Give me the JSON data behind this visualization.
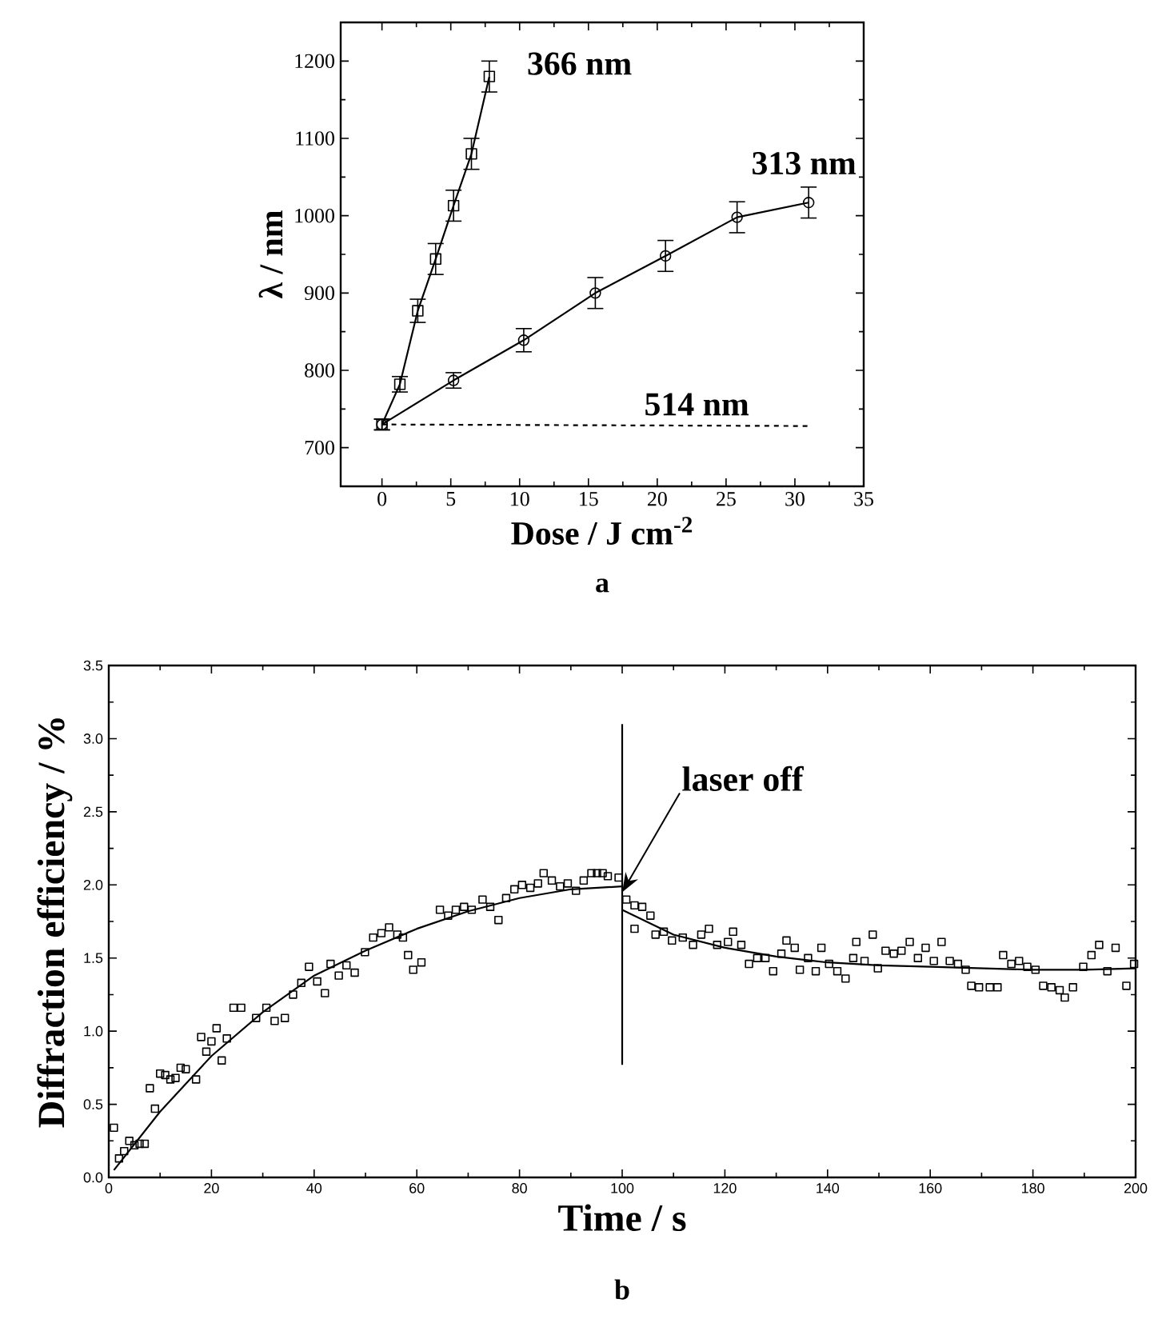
{
  "chart_data": [
    {
      "type": "line",
      "xlabel": "Dose / J cm$^{-2}$",
      "ylabel": "λ / nm",
      "xlim": [
        -3,
        35
      ],
      "ylim": [
        650,
        1250
      ],
      "xticks": [
        0,
        5,
        10,
        15,
        20,
        25,
        30,
        35
      ],
      "yticks": [
        700,
        800,
        900,
        1000,
        1100,
        1200
      ],
      "annotations": [
        "a"
      ],
      "legend": "top right",
      "series": [
        {
          "name": "366 nm",
          "color": "#000000",
          "marker": "square",
          "line_style": "solid",
          "x": [
            0,
            1.3,
            2.6,
            3.9,
            5.2,
            6.5,
            7.8
          ],
          "values": [
            730,
            782,
            877,
            944,
            1013,
            1080,
            1180
          ],
          "errors": [
            7,
            10,
            15,
            20,
            20,
            20,
            20
          ]
        },
        {
          "name": "313 nm",
          "color": "#000000",
          "marker": "circle",
          "line_style": "solid",
          "x": [
            0,
            5.2,
            10.3,
            15.5,
            20.6,
            25.8,
            31
          ],
          "values": [
            730,
            787,
            839,
            900,
            948,
            998,
            1017
          ],
          "errors": [
            7,
            10,
            15,
            20,
            20,
            20,
            20
          ]
        },
        {
          "name": "514 nm",
          "color": "#000000",
          "marker": "none",
          "line_style": "dashed",
          "x": [
            0,
            31
          ],
          "values": [
            730,
            728
          ]
        }
      ]
    },
    {
      "type": "scatter",
      "xlabel": "Time / s",
      "ylabel": "Diffraction efficiency / %",
      "xlim": [
        0,
        200
      ],
      "ylim": [
        0,
        3.5
      ],
      "xticks": [
        0,
        20,
        40,
        60,
        80,
        100,
        120,
        140,
        160,
        180,
        200
      ],
      "yticks": [
        {
          "value": 0,
          "label": "0.0"
        },
        0.5,
        {
          "value": 1,
          "label": "1.0"
        },
        1.5,
        {
          "value": 2,
          "label": "2.0"
        },
        2.5,
        {
          "value": 3,
          "label": "3.0"
        },
        3.5
      ],
      "annotations": [
        "b",
        {
          "text": "laser off",
          "x": 100,
          "y": 1.95
        }
      ],
      "series": [
        {
          "type": "scatter",
          "color": "#000000",
          "marker": "square",
          "x": [
            1,
            2,
            3,
            4,
            5,
            6,
            7,
            8,
            9,
            10,
            11,
            12,
            13,
            14,
            15,
            17,
            18,
            19,
            20,
            21,
            22,
            23,
            24.3,
            25.8,
            28.7,
            30.7,
            32.3,
            34.3,
            35.9,
            37.5,
            39,
            40.6,
            42.1,
            43.2,
            44.8,
            46.3,
            47.9,
            49.9,
            51.5,
            53.1,
            54.6,
            56.2,
            57.3,
            58.3,
            59.3,
            60.9,
            64.5,
            66.1,
            67.6,
            69.2,
            70.7,
            72.8,
            74.3,
            75.9,
            77.4,
            79,
            80.5,
            82.1,
            83.6,
            84.7,
            86.3,
            87.9,
            89.4,
            91,
            92.5,
            94,
            95.1,
            96.2,
            97.2,
            99.3,
            100.8,
            102.4,
            103.9,
            105.5,
            102.4,
            106.5,
            108.1,
            109.7,
            111.8,
            113.8,
            115.4,
            116.9,
            118.5,
            120.6,
            121.6,
            123.2,
            124.7,
            126.3,
            127.9,
            129.4,
            131,
            132,
            133.6,
            134.6,
            136.2,
            137.7,
            138.8,
            140.3,
            141.9,
            143.5,
            145,
            145.6,
            147.2,
            148.8,
            149.8,
            151.3,
            152.9,
            154.4,
            156,
            157.6,
            159.1,
            160.7,
            162.2,
            163.8,
            165.4,
            166.9,
            168,
            169.5,
            171.6,
            173.1,
            174.2,
            175.8,
            177.3,
            178.9,
            180.5,
            182,
            183.6,
            185.2,
            186.2,
            187.8,
            189.8,
            191.4,
            192.9,
            194.5,
            196.1,
            198.2,
            199.7
          ],
          "values": [
            0.34,
            0.13,
            0.18,
            0.25,
            0.22,
            0.23,
            0.23,
            0.61,
            0.47,
            0.71,
            0.7,
            0.67,
            0.68,
            0.75,
            0.74,
            0.67,
            0.96,
            0.86,
            0.93,
            1.02,
            0.8,
            0.95,
            1.16,
            1.16,
            1.09,
            1.16,
            1.07,
            1.09,
            1.25,
            1.33,
            1.44,
            1.34,
            1.26,
            1.46,
            1.38,
            1.45,
            1.4,
            1.54,
            1.64,
            1.67,
            1.71,
            1.66,
            1.64,
            1.52,
            1.42,
            1.47,
            1.83,
            1.79,
            1.83,
            1.85,
            1.83,
            1.9,
            1.85,
            1.76,
            1.91,
            1.97,
            2.0,
            1.98,
            2.01,
            2.08,
            2.03,
            1.99,
            2.01,
            1.96,
            2.03,
            2.08,
            2.08,
            2.08,
            2.06,
            2.05,
            1.9,
            1.86,
            1.85,
            1.79,
            1.7,
            1.66,
            1.68,
            1.62,
            1.64,
            1.59,
            1.66,
            1.7,
            1.59,
            1.61,
            1.68,
            1.59,
            1.46,
            1.5,
            1.5,
            1.41,
            1.53,
            1.62,
            1.57,
            1.42,
            1.5,
            1.41,
            1.57,
            1.46,
            1.41,
            1.36,
            1.5,
            1.61,
            1.48,
            1.66,
            1.43,
            1.55,
            1.53,
            1.55,
            1.61,
            1.5,
            1.57,
            1.48,
            1.61,
            1.48,
            1.46,
            1.42,
            1.31,
            1.3,
            1.3,
            1.3,
            1.52,
            1.46,
            1.48,
            1.44,
            1.42,
            1.31,
            1.3,
            1.28,
            1.23,
            1.3,
            1.44,
            1.52,
            1.59,
            1.41,
            1.57,
            1.31,
            1.46
          ]
        },
        {
          "type": "line",
          "color": "#000000",
          "line_style": "solid",
          "x": [
            1,
            10,
            20,
            30,
            40,
            50,
            60,
            70,
            80,
            90,
            100
          ],
          "values": [
            0.05,
            0.45,
            0.83,
            1.13,
            1.38,
            1.55,
            1.7,
            1.82,
            1.91,
            1.97,
            1.99
          ]
        },
        {
          "type": "line",
          "color": "#000000",
          "line_style": "solid",
          "x": [
            100,
            110,
            120,
            130,
            140,
            150,
            160,
            170,
            180,
            190,
            200
          ],
          "values": [
            1.83,
            1.66,
            1.57,
            1.51,
            1.47,
            1.45,
            1.44,
            1.43,
            1.42,
            1.42,
            1.43
          ]
        },
        {
          "type": "line",
          "color": "#000000",
          "line_style": "solid",
          "x": [
            100,
            100
          ],
          "values": [
            0.77,
            3.1
          ]
        }
      ]
    }
  ]
}
